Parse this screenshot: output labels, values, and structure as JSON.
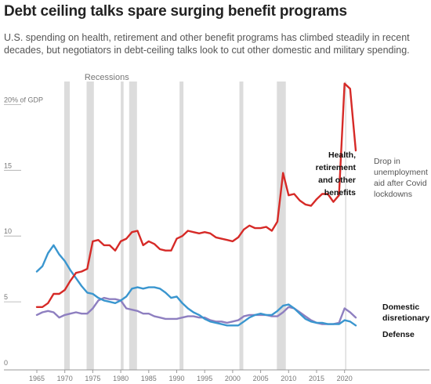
{
  "title": "Debt ceiling talks spare surging benefit programs",
  "subtitle_lines": [
    "U.S. spending on health, retirement and other benefit programs has climbed steadily in recent",
    "decades, but negotiators in debt-ceiling talks look to cut other domestic and military spending."
  ],
  "chart_data": {
    "type": "line",
    "xlim": [
      1962,
      2025
    ],
    "ylim": [
      0,
      21.5
    ],
    "grid": false,
    "x_ticks": [
      1965,
      1970,
      1975,
      1980,
      1985,
      1990,
      1995,
      2000,
      2005,
      2010,
      2015,
      2020
    ],
    "y_ticks": [
      {
        "value": 0,
        "label": "0"
      },
      {
        "value": 5,
        "label": "5"
      },
      {
        "value": 10,
        "label": "10"
      },
      {
        "value": 15,
        "label": "15"
      },
      {
        "value": 20,
        "label": "20% of GDP"
      }
    ],
    "recessions_label": "Recessions",
    "recessions": [
      [
        1969.9,
        1970.9
      ],
      [
        1973.9,
        1975.2
      ],
      [
        1980.0,
        1980.5
      ],
      [
        1981.5,
        1982.9
      ],
      [
        1990.5,
        1991.2
      ],
      [
        2001.2,
        2001.9
      ],
      [
        2007.9,
        2009.5
      ],
      [
        2020.1,
        2020.3
      ]
    ],
    "series": [
      {
        "name": "Health, retirement and other benefits",
        "label_lines": [
          "Health,",
          "retirement",
          "and other",
          "benefits"
        ],
        "color": "#d62a27",
        "x": [
          1965,
          1966,
          1967,
          1968,
          1969,
          1970,
          1971,
          1972,
          1973,
          1974,
          1975,
          1976,
          1977,
          1978,
          1979,
          1980,
          1981,
          1982,
          1983,
          1984,
          1985,
          1986,
          1987,
          1988,
          1989,
          1990,
          1991,
          1992,
          1993,
          1994,
          1995,
          1996,
          1997,
          1998,
          1999,
          2000,
          2001,
          2002,
          2003,
          2004,
          2005,
          2006,
          2007,
          2008,
          2009,
          2010,
          2011,
          2012,
          2013,
          2014,
          2015,
          2016,
          2017,
          2018,
          2019,
          2020,
          2021,
          2022
        ],
        "values": [
          4.6,
          4.6,
          4.9,
          5.6,
          5.6,
          5.9,
          6.6,
          7.2,
          7.3,
          7.5,
          9.6,
          9.7,
          9.3,
          9.3,
          8.9,
          9.6,
          9.8,
          10.3,
          10.4,
          9.3,
          9.6,
          9.4,
          9.0,
          8.9,
          8.9,
          9.8,
          10.0,
          10.4,
          10.3,
          10.2,
          10.3,
          10.2,
          9.9,
          9.8,
          9.7,
          9.6,
          9.9,
          10.5,
          10.8,
          10.6,
          10.6,
          10.7,
          10.4,
          11.1,
          14.8,
          13.1,
          13.2,
          12.7,
          12.4,
          12.3,
          12.8,
          13.2,
          13.2,
          12.6,
          13.1,
          21.6,
          21.2,
          16.5
        ]
      },
      {
        "name": "Domestic disretionary",
        "label_lines": [
          "Domestic",
          "disretionary"
        ],
        "color": "#3a96cf",
        "x": [
          1965,
          1966,
          1967,
          1968,
          1969,
          1970,
          1971,
          1972,
          1973,
          1974,
          1975,
          1976,
          1977,
          1978,
          1979,
          1980,
          1981,
          1982,
          1983,
          1984,
          1985,
          1986,
          1987,
          1988,
          1989,
          1990,
          1991,
          1992,
          1993,
          1994,
          1995,
          1996,
          1997,
          1998,
          1999,
          2000,
          2001,
          2002,
          2003,
          2004,
          2005,
          2006,
          2007,
          2008,
          2009,
          2010,
          2011,
          2012,
          2013,
          2014,
          2015,
          2016,
          2017,
          2018,
          2019,
          2020,
          2021,
          2022
        ],
        "values": [
          7.3,
          7.7,
          8.7,
          9.3,
          8.6,
          8.1,
          7.4,
          6.8,
          6.2,
          5.7,
          5.6,
          5.3,
          5.1,
          5.0,
          4.9,
          5.1,
          5.4,
          6.0,
          6.1,
          6.0,
          6.1,
          6.1,
          6.0,
          5.7,
          5.3,
          5.4,
          4.9,
          4.5,
          4.2,
          4.0,
          3.7,
          3.5,
          3.4,
          3.3,
          3.2,
          3.2,
          3.2,
          3.5,
          3.8,
          4.0,
          4.1,
          4.0,
          4.0,
          4.3,
          4.7,
          4.8,
          4.5,
          4.1,
          3.7,
          3.5,
          3.4,
          3.4,
          3.3,
          3.3,
          3.3,
          3.6,
          3.5,
          3.2
        ]
      },
      {
        "name": "Defense",
        "label_lines": [
          "Defense"
        ],
        "color": "#8e7fc0",
        "x": [
          1965,
          1966,
          1967,
          1968,
          1969,
          1970,
          1971,
          1972,
          1973,
          1974,
          1975,
          1976,
          1977,
          1978,
          1979,
          1980,
          1981,
          1982,
          1983,
          1984,
          1985,
          1986,
          1987,
          1988,
          1989,
          1990,
          1991,
          1992,
          1993,
          1994,
          1995,
          1996,
          1997,
          1998,
          1999,
          2000,
          2001,
          2002,
          2003,
          2004,
          2005,
          2006,
          2007,
          2008,
          2009,
          2010,
          2011,
          2012,
          2013,
          2014,
          2015,
          2016,
          2017,
          2018,
          2019,
          2020,
          2021,
          2022
        ],
        "values": [
          4.0,
          4.2,
          4.3,
          4.2,
          3.8,
          4.0,
          4.1,
          4.2,
          4.1,
          4.1,
          4.5,
          5.1,
          5.3,
          5.2,
          5.2,
          5.1,
          4.5,
          4.4,
          4.3,
          4.1,
          4.1,
          3.9,
          3.8,
          3.7,
          3.7,
          3.7,
          3.8,
          3.9,
          3.9,
          3.8,
          3.8,
          3.6,
          3.5,
          3.5,
          3.4,
          3.5,
          3.6,
          3.9,
          4.0,
          4.0,
          4.0,
          4.0,
          3.9,
          3.9,
          4.2,
          4.6,
          4.5,
          4.2,
          3.9,
          3.6,
          3.4,
          3.3,
          3.3,
          3.3,
          3.4,
          4.5,
          4.2,
          3.8
        ]
      }
    ],
    "annotation_lines": [
      "Drop in",
      "unemployment",
      "aid after Covid",
      "lockdowns"
    ]
  }
}
